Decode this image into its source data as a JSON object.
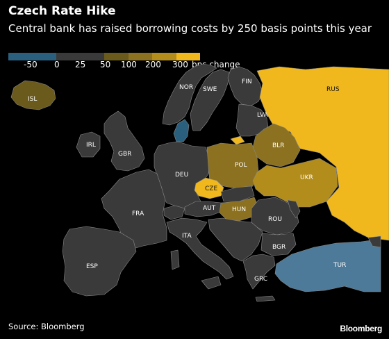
{
  "header": {
    "title": "Czech Rate Hike",
    "subtitle": "Central bank has raised borrowing costs by 250 basis points this year"
  },
  "legend": {
    "unit_label": "bps change",
    "bins": [
      {
        "label": "",
        "color": "#2a5f7d"
      },
      {
        "label": "-50",
        "color": "#2a5f7d"
      },
      {
        "label": "0",
        "color": "#3a3a3a"
      },
      {
        "label": "25",
        "color": "#3a3a3a"
      },
      {
        "label": "50",
        "color": "#6a5a1c"
      },
      {
        "label": "100",
        "color": "#8c7120"
      },
      {
        "label": "200",
        "color": "#b38d1b"
      },
      {
        "label": "300",
        "color": "#f0b81c"
      }
    ],
    "tick_labels": [
      "-50",
      "0",
      "25",
      "50",
      "100",
      "200",
      "300"
    ]
  },
  "colors": {
    "background": "#000000",
    "neutral": "#3a3a3a",
    "negative": "#4c7a98",
    "tier_50": "#6a5a1c",
    "tier_100": "#8c7120",
    "tier_200": "#b38d1b",
    "tier_300": "#f0b81c",
    "borders": "#8a8a8a"
  },
  "countries": [
    {
      "code": "ISL",
      "tier": "tier_50"
    },
    {
      "code": "NOR",
      "tier": "neutral"
    },
    {
      "code": "SWE",
      "tier": "neutral"
    },
    {
      "code": "FIN",
      "tier": "neutral"
    },
    {
      "code": "RUS",
      "tier": "tier_300"
    },
    {
      "code": "LVA",
      "tier": "neutral"
    },
    {
      "code": "IRL",
      "tier": "neutral"
    },
    {
      "code": "GBR",
      "tier": "neutral"
    },
    {
      "code": "BLR",
      "tier": "tier_100"
    },
    {
      "code": "DEU",
      "tier": "neutral"
    },
    {
      "code": "POL",
      "tier": "tier_100"
    },
    {
      "code": "UKR",
      "tier": "tier_200"
    },
    {
      "code": "CZE",
      "tier": "tier_200"
    },
    {
      "code": "FRA",
      "tier": "neutral"
    },
    {
      "code": "AUT",
      "tier": "neutral"
    },
    {
      "code": "HUN",
      "tier": "tier_100"
    },
    {
      "code": "ROU",
      "tier": "neutral"
    },
    {
      "code": "ITA",
      "tier": "neutral"
    },
    {
      "code": "BGR",
      "tier": "neutral"
    },
    {
      "code": "ESP",
      "tier": "neutral"
    },
    {
      "code": "TUR",
      "tier": "negative"
    },
    {
      "code": "GRC",
      "tier": "neutral"
    }
  ],
  "footer": {
    "source": "Source: Bloomberg",
    "brand": "Bloomberg"
  }
}
